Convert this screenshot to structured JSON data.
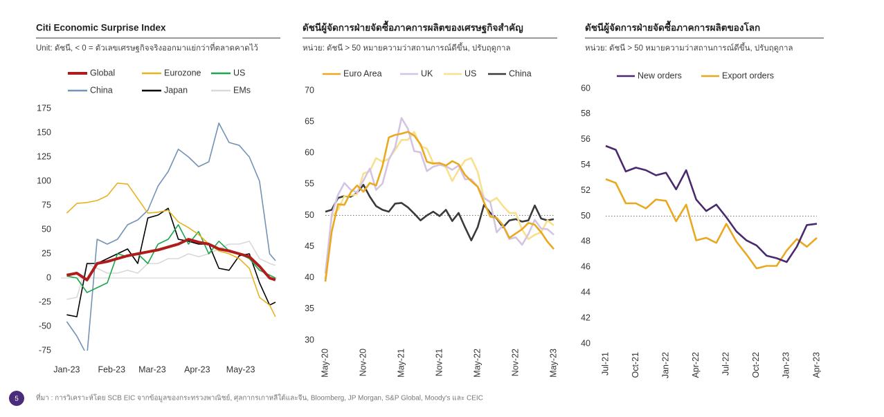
{
  "chart_data": [
    {
      "type": "line",
      "title": "Citi Economic  Surprise Index",
      "subtitle": "Unit: ดัชนี, < 0 = ตัวเลขเศรษฐกิจจริงออกมาแย่กว่าที่ตลาดคาดไว้",
      "x": [
        0,
        7,
        14,
        21,
        28,
        35,
        42,
        49,
        56,
        63,
        70,
        77,
        84,
        91,
        98,
        105,
        112,
        119,
        126,
        133,
        140,
        144
      ],
      "xlim": [
        -4,
        145
      ],
      "xticks": [
        {
          "value": 0,
          "label": "Jan-23"
        },
        {
          "value": 31,
          "label": "Feb-23"
        },
        {
          "value": 59,
          "label": "Mar-23"
        },
        {
          "value": 90,
          "label": "Apr-23"
        },
        {
          "value": 120,
          "label": "May-23"
        }
      ],
      "ylim": [
        -75,
        175
      ],
      "yticks": [
        -75,
        -50,
        -25,
        0,
        25,
        50,
        75,
        100,
        125,
        150,
        175
      ],
      "series": [
        {
          "name": "Global",
          "color": "#b01c1c",
          "values": [
            3,
            5,
            -2,
            15,
            17,
            20,
            23,
            25,
            27,
            29,
            32,
            35,
            40,
            37,
            35,
            30,
            28,
            25,
            22,
            12,
            0,
            -2
          ]
        },
        {
          "name": "Eurozone",
          "color": "#e8b21e",
          "values": [
            67,
            77,
            78,
            80,
            85,
            98,
            97,
            82,
            67,
            68,
            70,
            58,
            52,
            45,
            35,
            28,
            25,
            20,
            10,
            -20,
            -28,
            -40
          ]
        },
        {
          "name": "US",
          "color": "#1aa64a",
          "values": [
            2,
            0,
            -15,
            -10,
            -5,
            25,
            22,
            25,
            15,
            35,
            40,
            55,
            35,
            48,
            25,
            38,
            28,
            25,
            20,
            8,
            3,
            0
          ]
        },
        {
          "name": "China",
          "color": "#7392b5",
          "values": [
            -45,
            -60,
            -80,
            40,
            35,
            40,
            55,
            60,
            70,
            95,
            110,
            133,
            125,
            115,
            120,
            160,
            140,
            137,
            125,
            100,
            25,
            18
          ]
        },
        {
          "name": "Japan",
          "color": "#000000",
          "values": [
            -38,
            -40,
            15,
            15,
            20,
            25,
            30,
            15,
            62,
            65,
            72,
            40,
            38,
            35,
            35,
            10,
            8,
            23,
            25,
            -5,
            -28,
            -25
          ]
        },
        {
          "name": "EMs",
          "color": "#d9d9d9",
          "values": [
            -22,
            -20,
            15,
            10,
            5,
            5,
            8,
            5,
            15,
            15,
            20,
            20,
            25,
            22,
            25,
            30,
            35,
            35,
            38,
            20,
            15,
            13
          ]
        }
      ]
    },
    {
      "type": "line",
      "title": "ดัชนีผู้จัดการฝ่ายจัดซื้อภาคการผลิตของเศรษฐกิจสำคัญ",
      "subtitle": "หน่วย: ดัชนี > 50 หมายความว่าสถานการณ์ดีขึ้น, ปรับฤดูกาล",
      "categories": [
        "May-20",
        null,
        null,
        null,
        null,
        null,
        "Nov-20",
        null,
        null,
        null,
        null,
        null,
        "May-21",
        null,
        null,
        null,
        null,
        null,
        "Nov-21",
        null,
        null,
        null,
        null,
        null,
        "May-22",
        null,
        null,
        null,
        null,
        null,
        "Nov-22",
        null,
        null,
        null,
        null,
        null,
        "May-23"
      ],
      "ylim": [
        30,
        70
      ],
      "yticks": [
        30,
        35,
        40,
        45,
        50,
        55,
        60,
        65,
        70
      ],
      "reference_line": 50,
      "series": [
        {
          "name": "Euro Area",
          "color": "#eaa820",
          "values": [
            39.4,
            47.4,
            51.8,
            51.7,
            53.7,
            54.8,
            53.8,
            55.2,
            54.8,
            57.9,
            62.5,
            62.9,
            63.1,
            63.4,
            62.8,
            61.4,
            58.6,
            58.3,
            58.4,
            58.0,
            58.7,
            58.2,
            56.5,
            55.5,
            54.6,
            52.1,
            49.8,
            49.6,
            48.4,
            46.4,
            47.1,
            47.8,
            48.8,
            48.5,
            47.3,
            45.8,
            44.6
          ]
        },
        {
          "name": "UK",
          "color": "#d4c4e4",
          "values": [
            40.7,
            50.1,
            53.3,
            55.2,
            54.1,
            53.7,
            55.6,
            57.5,
            54.1,
            55.1,
            58.9,
            60.9,
            65.6,
            63.9,
            60.3,
            60.1,
            57.1,
            57.8,
            58.1,
            57.9,
            57.3,
            58.0,
            55.8,
            55.8,
            54.6,
            52.8,
            52.1,
            47.3,
            48.4,
            46.2,
            46.5,
            45.3,
            47.0,
            49.3,
            47.9,
            47.8,
            46.9
          ]
        },
        {
          "name": "US",
          "color": "#f8e08c",
          "values": [
            39.8,
            49.8,
            50.9,
            53.1,
            53.2,
            53.4,
            56.7,
            57.1,
            59.2,
            58.6,
            59.1,
            60.5,
            62.1,
            62.1,
            63.4,
            61.1,
            60.7,
            58.4,
            58.3,
            57.7,
            55.5,
            57.3,
            58.8,
            59.2,
            57.0,
            52.7,
            52.2,
            52.8,
            51.5,
            50.4,
            50.4,
            47.7,
            46.2,
            46.9,
            47.3,
            49.2,
            48.4
          ]
        },
        {
          "name": "China",
          "color": "#3a3a3a",
          "values": [
            50.6,
            50.9,
            52.8,
            53.1,
            53.0,
            53.6,
            54.9,
            53.0,
            51.5,
            50.9,
            50.6,
            51.9,
            52.0,
            51.3,
            50.3,
            49.2,
            50.0,
            50.6,
            49.9,
            50.9,
            49.1,
            50.4,
            48.1,
            46.0,
            48.1,
            51.7,
            50.4,
            49.5,
            48.1,
            49.2,
            49.4,
            49.0,
            49.2,
            51.6,
            49.5,
            49.2,
            49.4
          ]
        }
      ]
    },
    {
      "type": "line",
      "title": "ดัชนีผู้จัดการฝ่ายจัดซื้อภาคการผลิตของโลก",
      "subtitle": "หน่วย: ดัชนี > 50 หมายความว่าสถานการณ์ดีขึ้น, ปรับฤดูกาล",
      "categories": [
        "Jul-21",
        null,
        null,
        "Oct-21",
        null,
        null,
        "Jan-22",
        null,
        null,
        "Apr-22",
        null,
        null,
        "Jul-22",
        null,
        null,
        "Oct-22",
        null,
        null,
        "Jan-23",
        null,
        null,
        "Apr-23"
      ],
      "ylim": [
        40,
        60
      ],
      "yticks": [
        40,
        42,
        44,
        46,
        48,
        50,
        52,
        54,
        56,
        58,
        60
      ],
      "reference_line": 50,
      "series": [
        {
          "name": "New orders",
          "color": "#4a2a6e",
          "values": [
            55.5,
            55.2,
            53.5,
            53.8,
            53.6,
            53.2,
            53.4,
            52.1,
            53.6,
            51.3,
            50.4,
            50.9,
            49.9,
            48.8,
            48.1,
            47.7,
            46.9,
            46.7,
            46.4,
            47.6,
            49.3,
            49.4
          ]
        },
        {
          "name": "Export orders",
          "color": "#eaa820",
          "values": [
            52.9,
            52.6,
            51.0,
            51.0,
            50.6,
            51.3,
            51.2,
            49.6,
            50.9,
            48.1,
            48.3,
            47.9,
            49.4,
            48.0,
            47.0,
            45.9,
            46.1,
            46.1,
            47.3,
            48.2,
            47.6,
            48.3
          ]
        }
      ]
    }
  ],
  "footer": {
    "page_number": "5",
    "source": "ที่มา : การวิเคราะห์โดย SCB EIC จากข้อมูลของกระทรวงพาณิชย์,  ศุลกากรเกาหลีใต้และจีน, Bloomberg, JP Morgan, S&P Global, Moody's และ CEIC"
  }
}
